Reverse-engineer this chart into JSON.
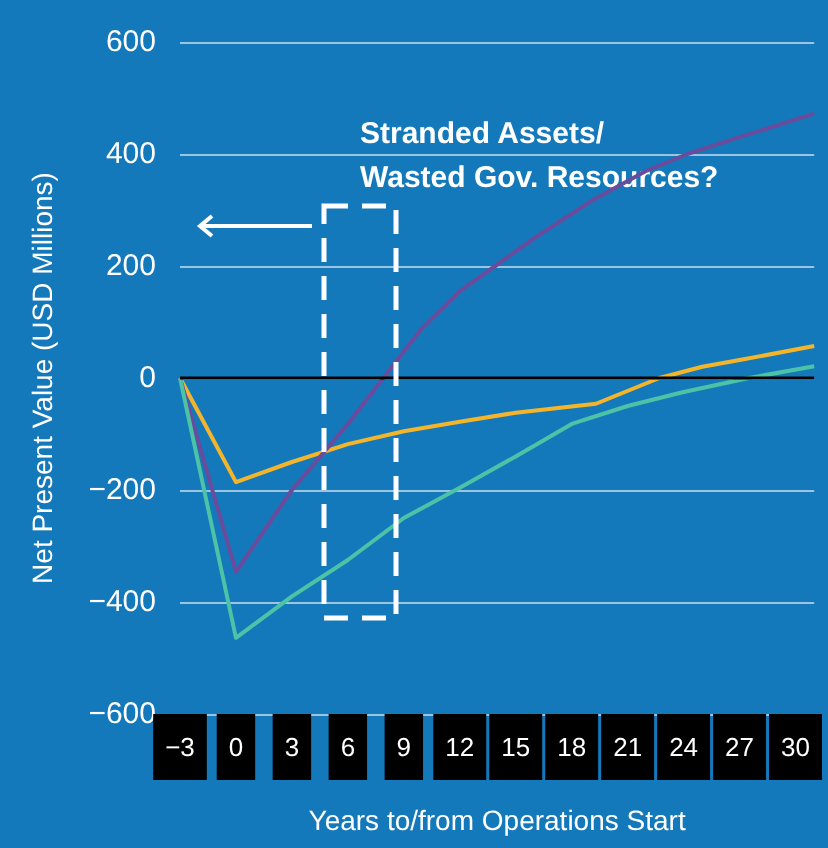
{
  "chart_data": {
    "type": "line",
    "xlabel": "Years to/from Operations Start",
    "ylabel": "Net Present Value (USD Millions)",
    "xlim": [
      -3,
      31
    ],
    "xticks": [
      -3,
      0,
      3,
      6,
      9,
      12,
      15,
      18,
      21,
      24,
      27,
      30
    ],
    "ylim": [
      -600,
      600
    ],
    "yticks": [
      -600,
      -400,
      -200,
      0,
      200,
      400,
      600
    ],
    "grid": "y",
    "marker": "none",
    "line_style": "solid",
    "series": [
      {
        "color": "#f5b52a",
        "x": [
          -3,
          0,
          3,
          6,
          9,
          12,
          15,
          19.3,
          22.7,
          25,
          27,
          31
        ],
        "values": [
          0,
          -186,
          -150,
          -118,
          -95,
          -78,
          -62,
          -46,
          0,
          20,
          32,
          57
        ]
      },
      {
        "color": "#6a4c9c",
        "x": [
          -3,
          0,
          3,
          6,
          7.9,
          10,
          12,
          13.9,
          16,
          19,
          22,
          24.2,
          27,
          31
        ],
        "values": [
          0,
          -346,
          -200,
          -82,
          0,
          90,
          155,
          200,
          250,
          315,
          370,
          400,
          430,
          472
        ]
      },
      {
        "color": "#4cc3a6",
        "x": [
          -3,
          0,
          3,
          6,
          9,
          12,
          15,
          18,
          21,
          24,
          27.5,
          31
        ],
        "values": [
          0,
          -464,
          -390,
          -325,
          -250,
          -196,
          -140,
          -82,
          -50,
          -25,
          0,
          21
        ]
      }
    ],
    "ref_lines": [
      {
        "axis": "y",
        "value": 0,
        "color": "#000000"
      }
    ],
    "annotations": [
      "Stranded Assets/\nWasted Gov. Resources?"
    ]
  }
}
